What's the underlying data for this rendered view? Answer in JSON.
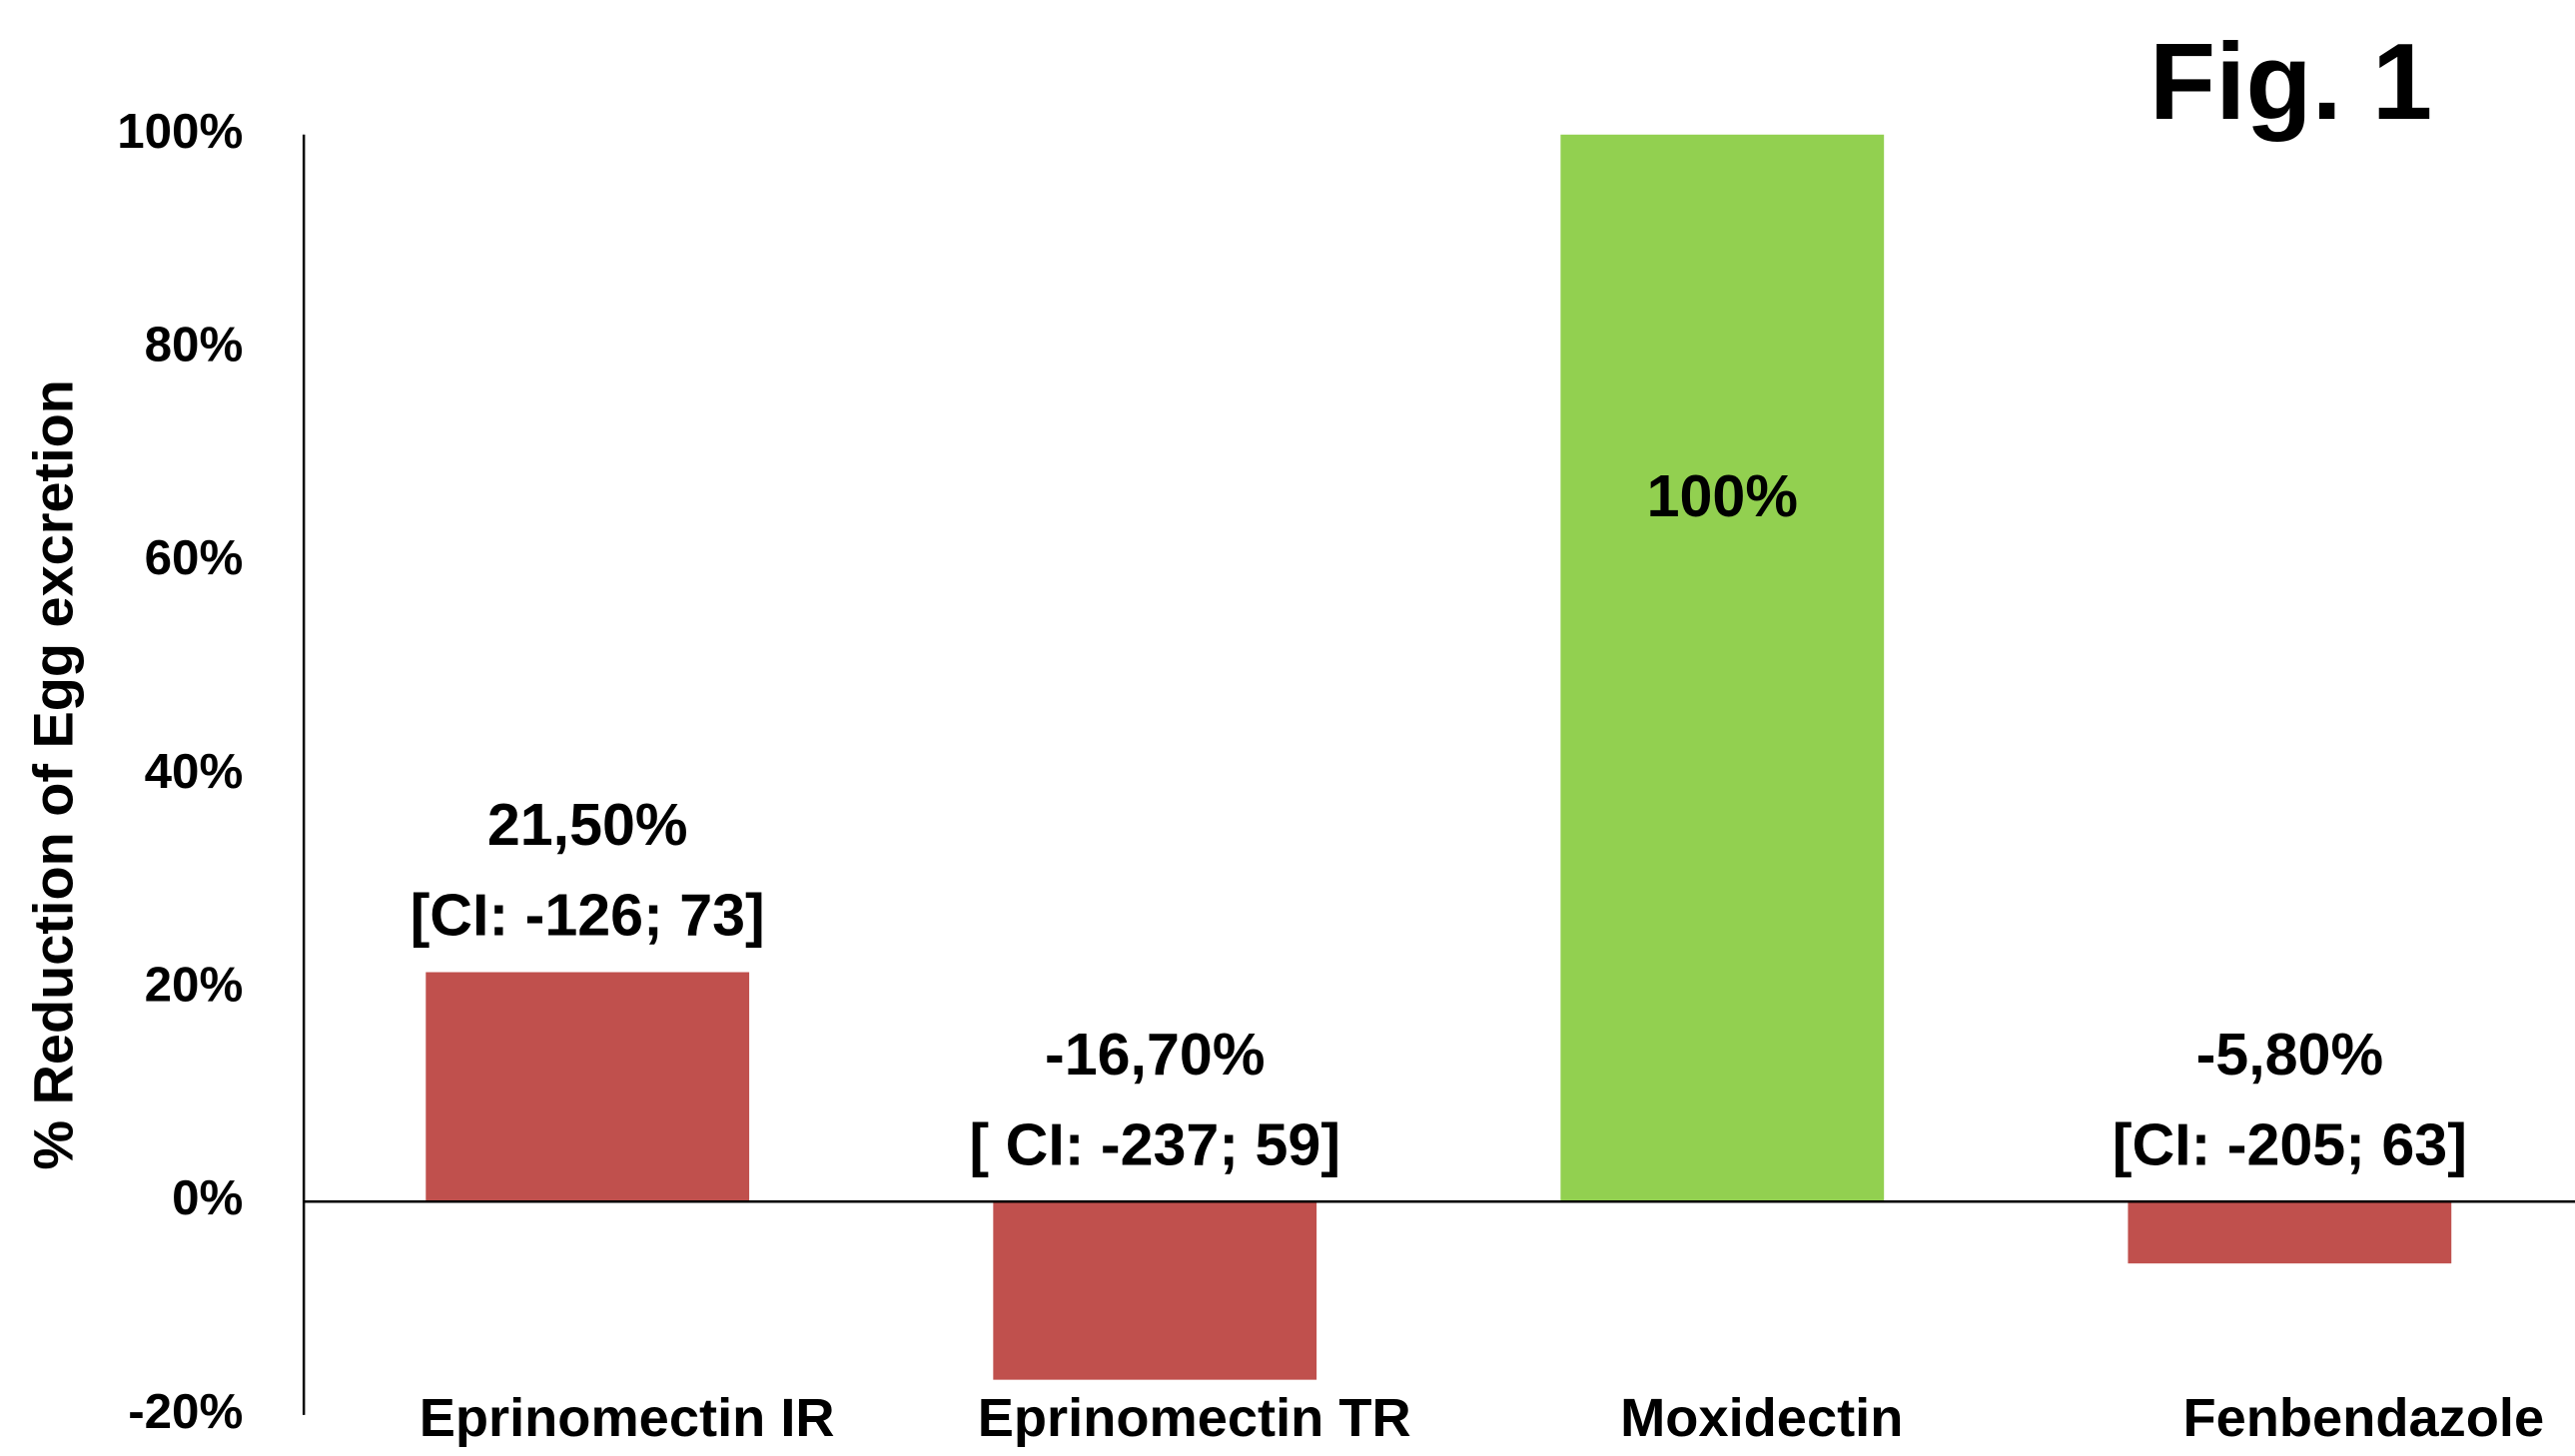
{
  "chart_data": {
    "type": "bar",
    "title": "Fig. 1",
    "y_label": "% Reduction of Egg  excretion",
    "categories": [
      "Eprinomectin IR",
      "Eprinomectin TR",
      "Moxidectin",
      "Fenbendazole"
    ],
    "values": [
      21.5,
      -16.7,
      100,
      -5.8
    ],
    "value_labels": [
      "21,50%",
      "-16,70%",
      "100%",
      "-5,80%"
    ],
    "ci_labels": [
      "[CI: -126; 73]",
      "[ CI: -237; 59]",
      null,
      "[CI: -205; 63]"
    ],
    "colors": [
      "#c0504d",
      "#c0504d",
      "#92d050",
      "#c0504d"
    ],
    "ylim": [
      -20,
      100
    ],
    "yticks": [
      {
        "value": -20,
        "label": "-20%"
      },
      {
        "value": 0,
        "label": "0%"
      },
      {
        "value": 20,
        "label": "20%"
      },
      {
        "value": 40,
        "label": "40%"
      },
      {
        "value": 60,
        "label": "60%"
      },
      {
        "value": 80,
        "label": "80%"
      },
      {
        "value": 100,
        "label": "100%"
      }
    ],
    "grid": false
  }
}
